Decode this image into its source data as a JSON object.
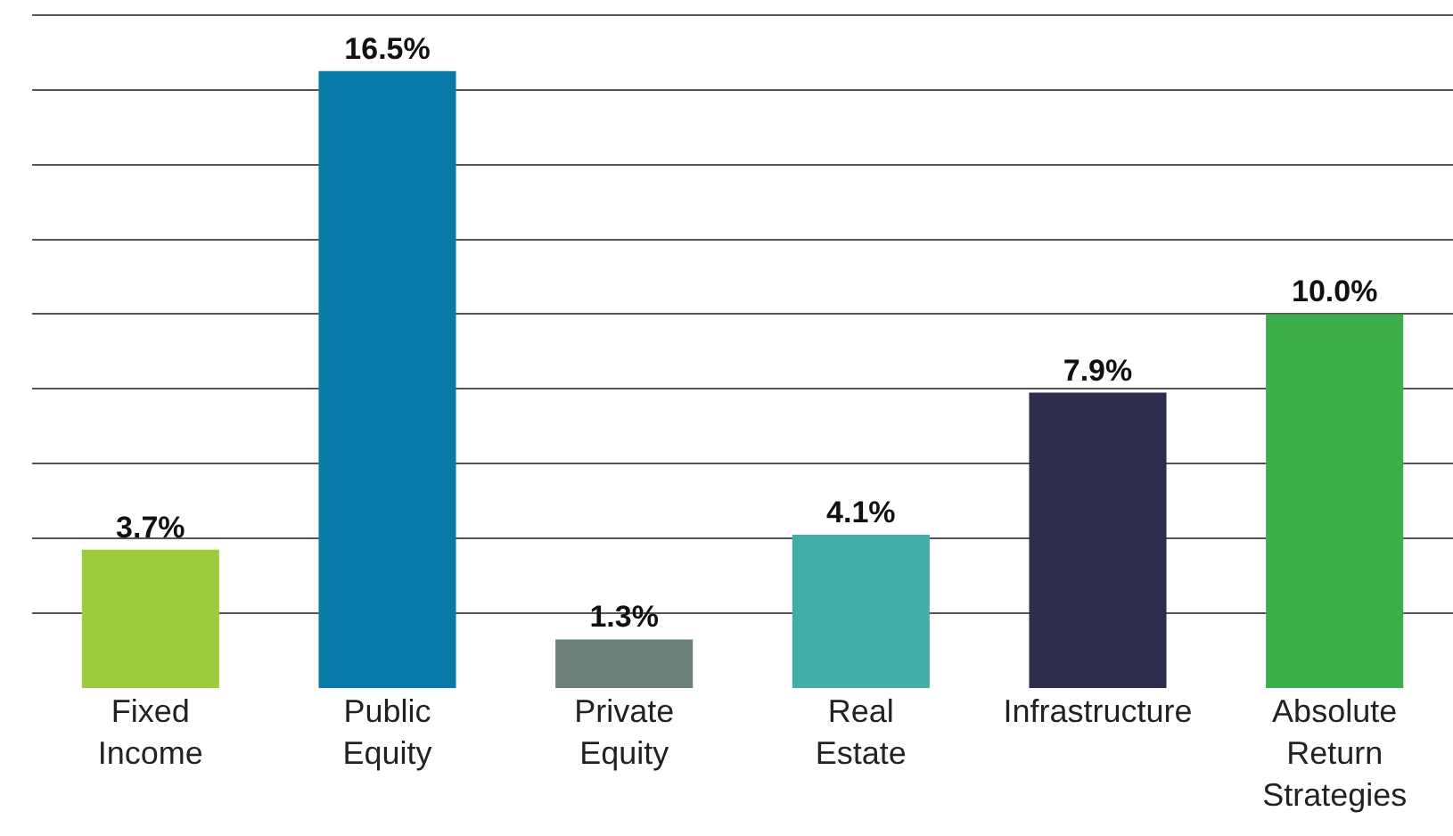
{
  "chart_data": {
    "type": "bar",
    "categories": [
      "Fixed Income",
      "Public Equity",
      "Private Equity",
      "Real Estate",
      "Infrastructure",
      "Absolute Return Strategies"
    ],
    "values": [
      3.7,
      16.5,
      1.3,
      4.1,
      7.9,
      10.0
    ],
    "colors": [
      "#9ccb3f",
      "#0a7aa8",
      "#6b7f7b",
      "#41aea9",
      "#2f2d4d",
      "#3daf4a"
    ],
    "value_labels": [
      "3.7%",
      "16.5%",
      "1.3%",
      "4.1%",
      "7.9%",
      "10.0%"
    ],
    "ylim": [
      0,
      18.4
    ],
    "tick_labels": "x",
    "grid": "y",
    "legend": false
  }
}
